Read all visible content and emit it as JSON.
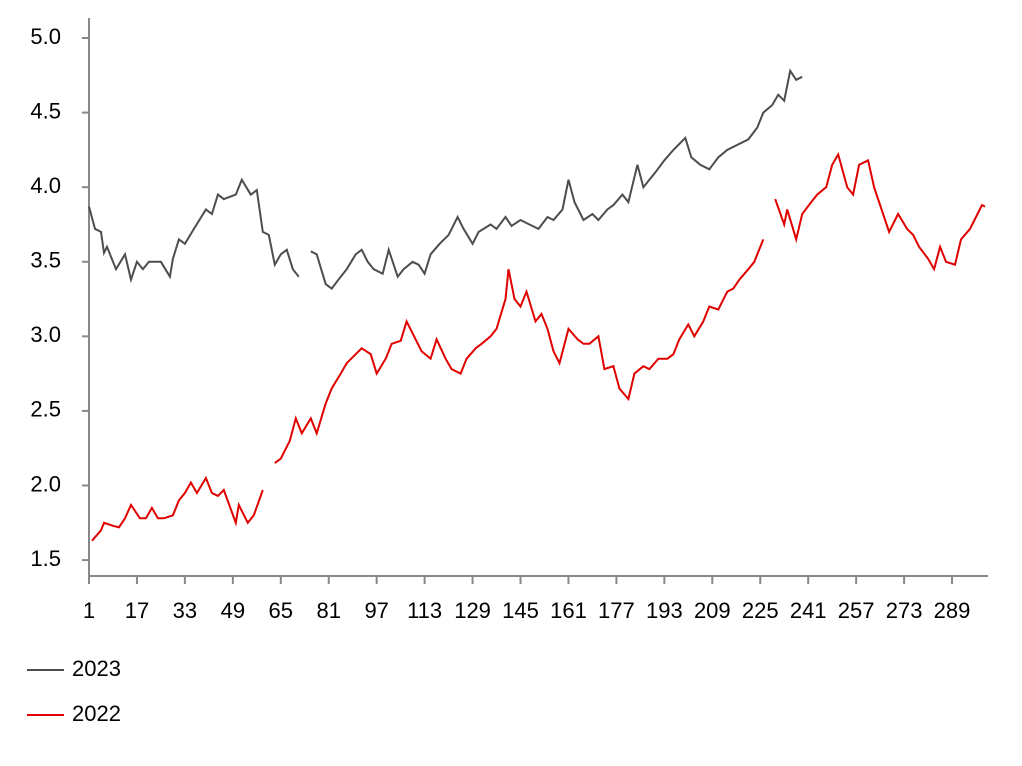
{
  "chart_data": {
    "type": "line",
    "xlim": [
      1,
      301
    ],
    "xticks": [
      1,
      17,
      33,
      49,
      65,
      81,
      97,
      113,
      129,
      145,
      161,
      177,
      193,
      209,
      225,
      241,
      257,
      273,
      289
    ],
    "ylim": [
      1.4,
      5.0
    ],
    "yticks": [
      1.5,
      {
        "value": 2,
        "label": "2.0"
      },
      2.5,
      {
        "value": 3,
        "label": "3.0"
      },
      3.5,
      {
        "value": 4,
        "label": "4.0"
      },
      4.5,
      {
        "value": 5,
        "label": "5.0"
      }
    ],
    "series": [
      {
        "name": "2023",
        "color": "#4d4d4d",
        "x": [
          1,
          3,
          5,
          6,
          7,
          10,
          13,
          15,
          17,
          19,
          21,
          25,
          28,
          29,
          31,
          33,
          36,
          40,
          42,
          44,
          46,
          50,
          52,
          55,
          57,
          59,
          61,
          63,
          65,
          67,
          69,
          71,
          73,
          75,
          77,
          80,
          82,
          85,
          87,
          90,
          92,
          94,
          96,
          99,
          101,
          104,
          106,
          109,
          111,
          113,
          115,
          118,
          121,
          124,
          126,
          129,
          131,
          135,
          137,
          140,
          142,
          145,
          148,
          151,
          154,
          156,
          159,
          161,
          163,
          166,
          169,
          171,
          174,
          176,
          179,
          181,
          184,
          186,
          190,
          193,
          196,
          200,
          202,
          205,
          208,
          211,
          214,
          217,
          221,
          224,
          226,
          229,
          231,
          233,
          235,
          237,
          239
        ],
        "values": [
          3.87,
          3.72,
          3.7,
          3.56,
          3.6,
          3.45,
          3.55,
          3.38,
          3.5,
          3.45,
          3.5,
          3.5,
          3.4,
          3.52,
          3.65,
          3.62,
          3.72,
          3.85,
          3.82,
          3.95,
          3.92,
          3.95,
          4.05,
          3.95,
          3.98,
          3.7,
          3.68,
          3.48,
          3.55,
          3.58,
          3.45,
          3.4,
          null,
          3.57,
          3.55,
          3.35,
          3.32,
          3.4,
          3.45,
          3.55,
          3.58,
          3.5,
          3.45,
          3.42,
          3.58,
          3.4,
          3.45,
          3.5,
          3.48,
          3.42,
          3.55,
          3.62,
          3.68,
          3.8,
          3.72,
          3.62,
          3.7,
          3.75,
          3.72,
          3.8,
          3.74,
          3.78,
          3.75,
          3.72,
          3.8,
          3.78,
          3.85,
          4.05,
          3.9,
          3.78,
          3.82,
          3.78,
          3.85,
          3.88,
          3.95,
          3.9,
          4.15,
          4.0,
          4.1,
          4.18,
          4.25,
          4.33,
          4.2,
          4.15,
          4.12,
          4.2,
          4.25,
          4.28,
          4.32,
          4.4,
          4.5,
          4.55,
          4.62,
          4.58,
          4.78,
          4.72,
          4.74
        ]
      },
      {
        "name": "2022",
        "color": "#e00000",
        "x": [
          2,
          5,
          6,
          9,
          11,
          13,
          15,
          18,
          20,
          22,
          24,
          26,
          29,
          31,
          33,
          35,
          37,
          40,
          42,
          44,
          46,
          50,
          51,
          54,
          56,
          59,
          61,
          63,
          65,
          68,
          70,
          72,
          75,
          77,
          80,
          82,
          85,
          87,
          90,
          92,
          95,
          97,
          100,
          102,
          105,
          107,
          110,
          112,
          115,
          117,
          120,
          122,
          125,
          127,
          130,
          132,
          135,
          137,
          140,
          141,
          143,
          145,
          147,
          150,
          152,
          154,
          156,
          158,
          161,
          164,
          166,
          168,
          171,
          173,
          176,
          178,
          181,
          183,
          186,
          188,
          191,
          194,
          196,
          198,
          201,
          203,
          206,
          208,
          211,
          214,
          216,
          218,
          221,
          223,
          226,
          228,
          230,
          233,
          234,
          237,
          239,
          242,
          244,
          247,
          249,
          251,
          254,
          256,
          258,
          261,
          263,
          266,
          268,
          271,
          274,
          276,
          278,
          281,
          283,
          285,
          287,
          290,
          292,
          295,
          297,
          299,
          300
        ],
        "values": [
          1.63,
          1.7,
          1.75,
          1.73,
          1.72,
          1.78,
          1.87,
          1.78,
          1.78,
          1.85,
          1.78,
          1.78,
          1.8,
          1.9,
          1.95,
          2.02,
          1.95,
          2.05,
          1.95,
          1.93,
          1.97,
          1.75,
          1.87,
          1.75,
          1.8,
          1.97,
          null,
          2.15,
          2.18,
          2.3,
          2.45,
          2.35,
          2.45,
          2.35,
          2.55,
          2.65,
          2.75,
          2.82,
          2.88,
          2.92,
          2.88,
          2.75,
          2.85,
          2.95,
          2.97,
          3.1,
          2.98,
          2.9,
          2.85,
          2.98,
          2.85,
          2.78,
          2.75,
          2.85,
          2.92,
          2.95,
          3.0,
          3.05,
          3.25,
          3.45,
          3.25,
          3.2,
          3.3,
          3.1,
          3.15,
          3.05,
          2.9,
          2.82,
          3.05,
          2.98,
          2.95,
          2.95,
          3.0,
          2.78,
          2.8,
          2.65,
          2.58,
          2.75,
          2.8,
          2.78,
          2.85,
          2.85,
          2.88,
          2.98,
          3.08,
          3.0,
          3.1,
          3.2,
          3.18,
          3.3,
          3.32,
          3.38,
          3.45,
          3.5,
          3.65,
          null,
          3.92,
          3.75,
          3.85,
          3.65,
          3.82,
          3.9,
          3.95,
          4.0,
          4.15,
          4.22,
          4.0,
          3.95,
          4.15,
          4.18,
          4.0,
          3.82,
          3.7,
          3.82,
          3.72,
          3.68,
          3.6,
          3.52,
          3.45,
          3.6,
          3.5,
          3.48,
          3.65,
          3.72,
          3.8,
          3.88,
          3.87
        ]
      }
    ]
  }
}
